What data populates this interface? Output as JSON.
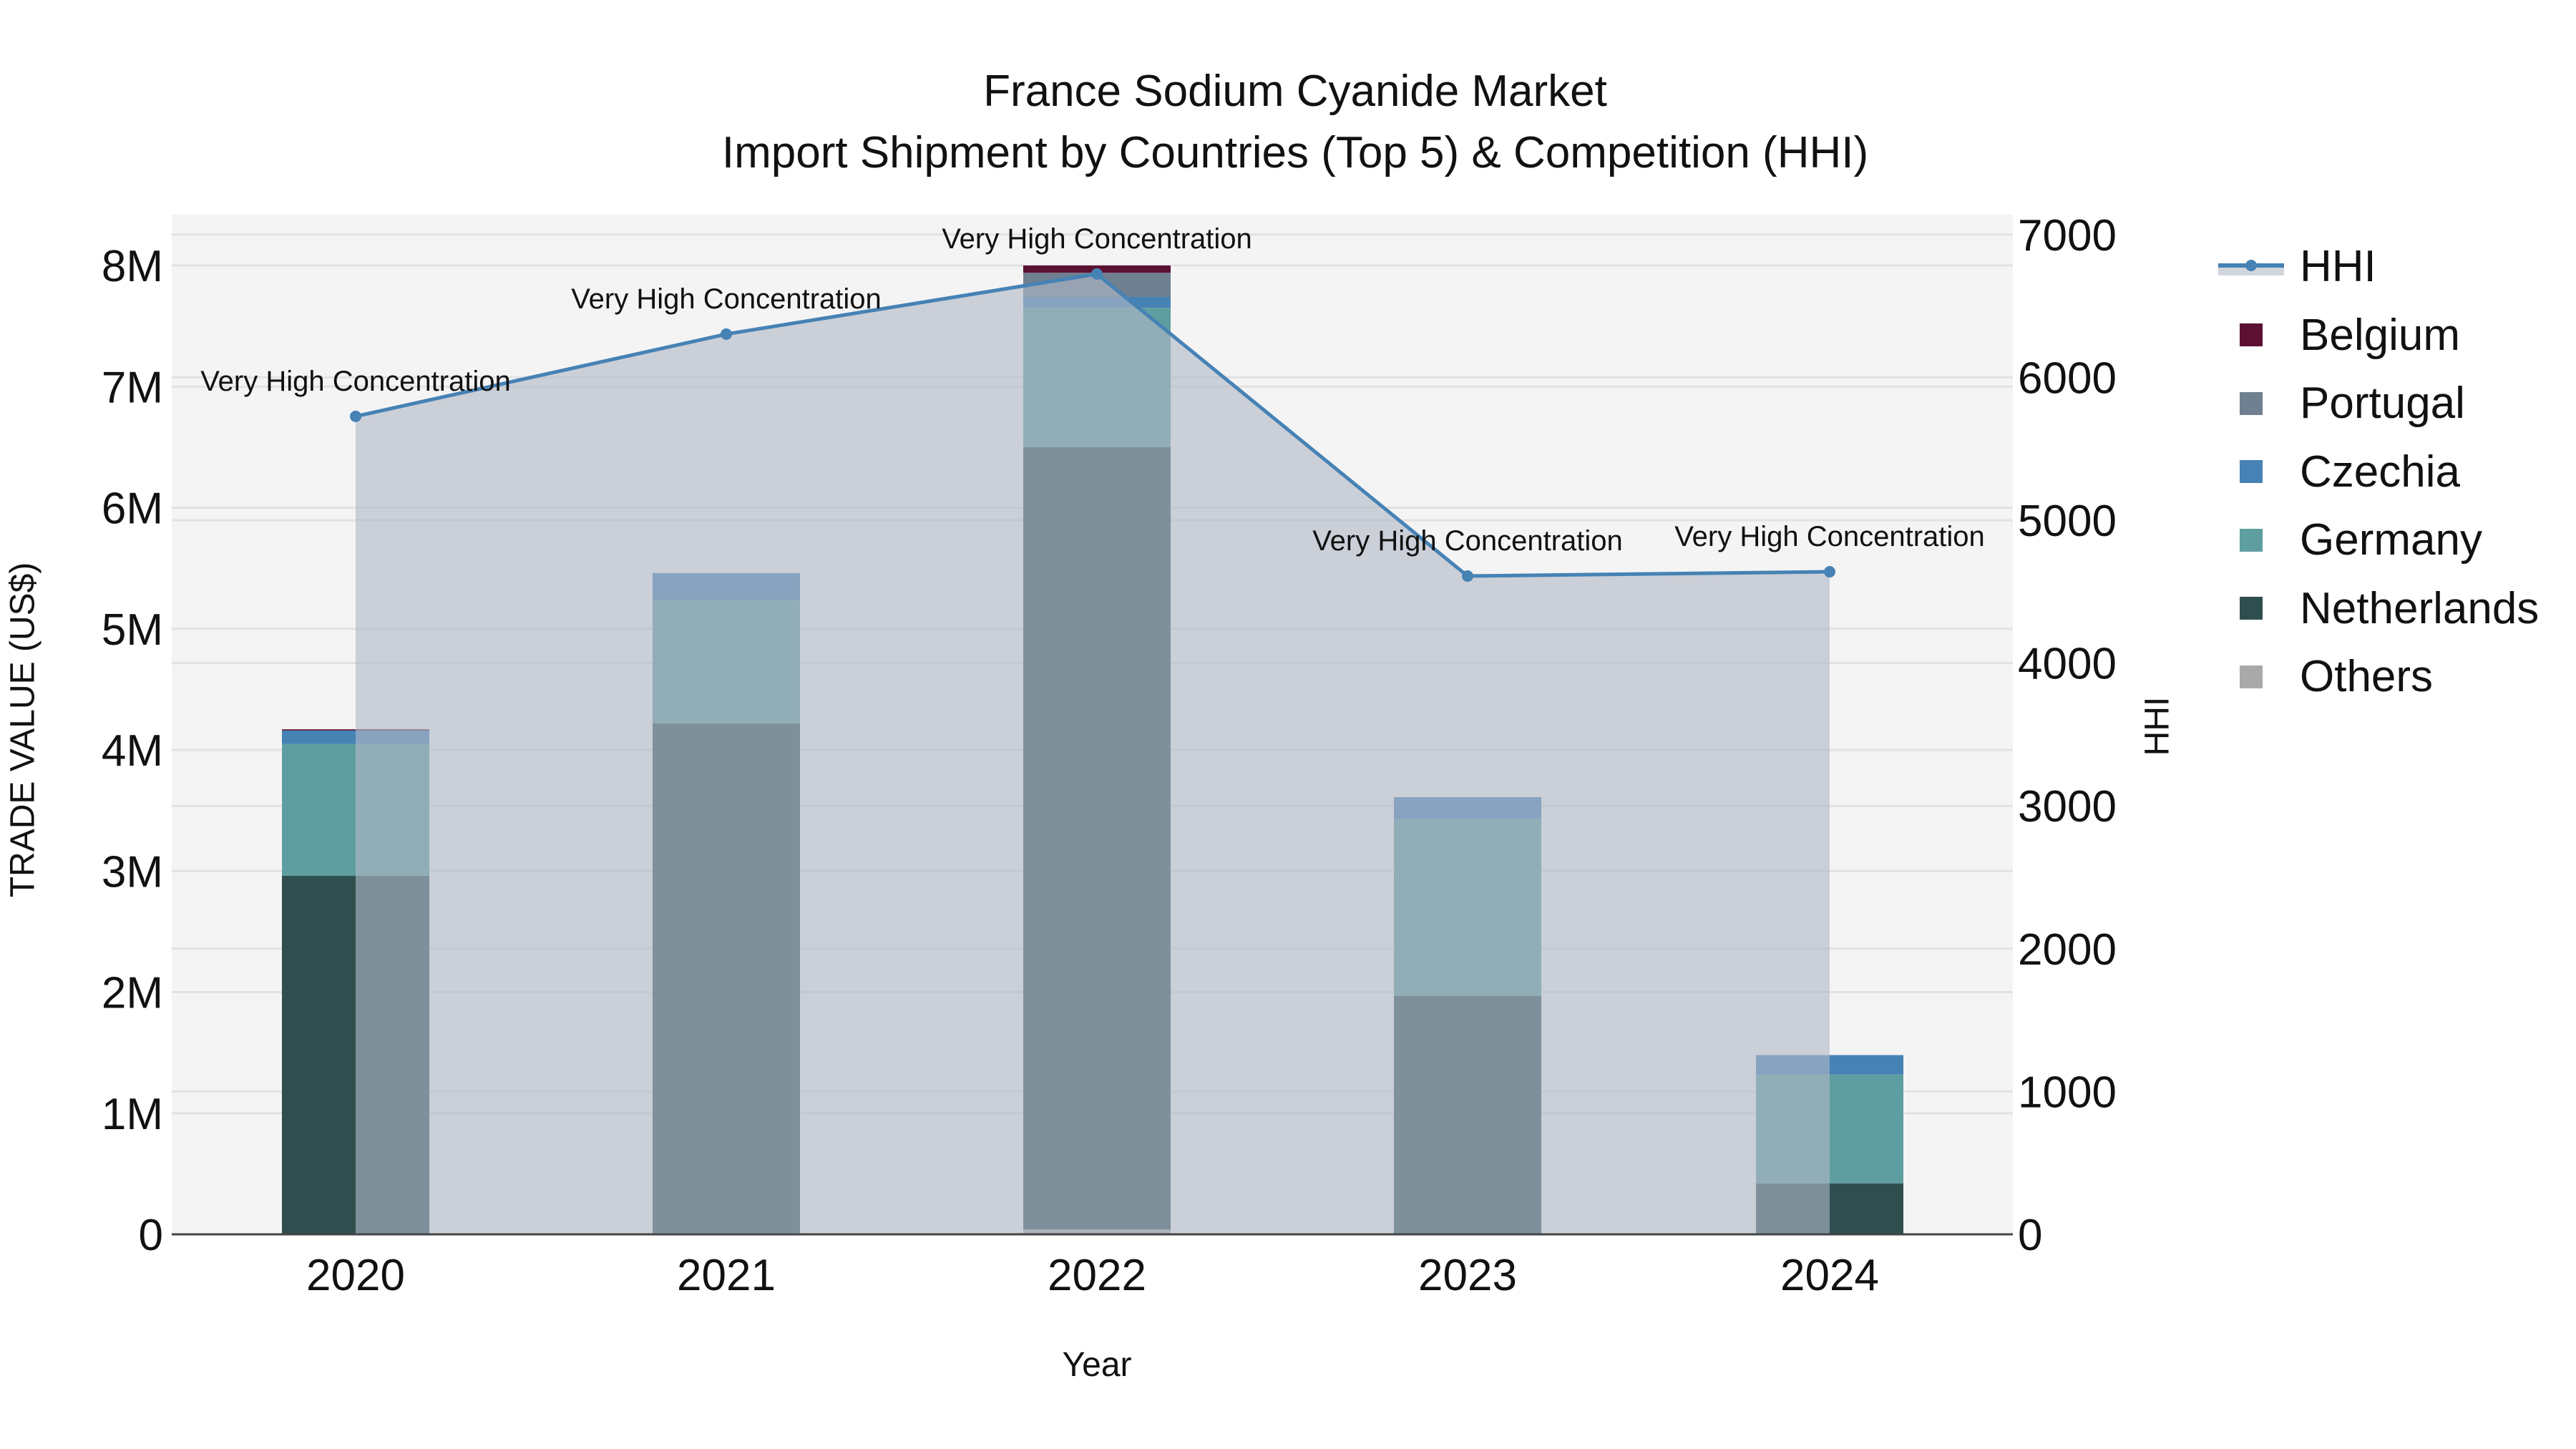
{
  "title": {
    "line1": "France Sodium Cyanide Market",
    "line2": "Import Shipment by Countries (Top 5) & Competition (HHI)"
  },
  "axes": {
    "x_title": "Year",
    "y_left_title": "TRADE VALUE (US$)",
    "y_right_title": "HHI",
    "y_left_ticks": [
      "0",
      "1M",
      "2M",
      "3M",
      "4M",
      "5M",
      "6M",
      "7M",
      "8M"
    ],
    "y_right_ticks": [
      "0",
      "1000",
      "2000",
      "3000",
      "4000",
      "5000",
      "6000",
      "7000"
    ]
  },
  "legend": {
    "items": [
      {
        "label": "HHI",
        "type": "line",
        "color": "#4682b4"
      },
      {
        "label": "Belgium",
        "type": "bar",
        "color": "#5c1133"
      },
      {
        "label": "Portugal",
        "type": "bar",
        "color": "#708090"
      },
      {
        "label": "Czechia",
        "type": "bar",
        "color": "#4682b4"
      },
      {
        "label": "Germany",
        "type": "bar",
        "color": "#5f9ea0"
      },
      {
        "label": "Netherlands",
        "type": "bar",
        "color": "#2f4f4f"
      },
      {
        "label": "Others",
        "type": "bar",
        "color": "#a9a9a9"
      }
    ]
  },
  "chart_data": {
    "type": "bar",
    "subtype": "stacked bar with line overlay (dual axis)",
    "title": "France Sodium Cyanide Market — Import Shipment by Countries (Top 5) & Competition (HHI)",
    "xlabel": "Year",
    "ylabel": "TRADE VALUE (US$)",
    "y2label": "HHI",
    "categories": [
      "2020",
      "2021",
      "2022",
      "2023",
      "2024"
    ],
    "ylim": [
      0,
      8400000
    ],
    "y2lim": [
      0,
      7150
    ],
    "grid": true,
    "legend_position": "right",
    "series": [
      {
        "name": "Others",
        "color": "#a9a9a9",
        "values": [
          0,
          10000,
          40000,
          0,
          0
        ]
      },
      {
        "name": "Netherlands",
        "color": "#2f4f4f",
        "values": [
          2960000,
          4210000,
          6460000,
          1970000,
          420000
        ]
      },
      {
        "name": "Germany",
        "color": "#5f9ea0",
        "values": [
          1090000,
          1020000,
          1150000,
          1460000,
          900000
        ]
      },
      {
        "name": "Czechia",
        "color": "#4682b4",
        "values": [
          110000,
          220000,
          90000,
          180000,
          160000
        ]
      },
      {
        "name": "Portugal",
        "color": "#708090",
        "values": [
          0,
          0,
          200000,
          0,
          0
        ]
      },
      {
        "name": "Belgium",
        "color": "#5c1133",
        "values": [
          10000,
          0,
          60000,
          0,
          0
        ]
      }
    ],
    "line_series": {
      "name": "HHI",
      "axis": "right",
      "color": "#4682b4",
      "fill": "tozeroy",
      "values": [
        5727,
        6303,
        6724,
        4609,
        4639
      ],
      "annotations": [
        "Very High Concentration",
        "Very High Concentration",
        "Very High Concentration",
        "Very High Concentration",
        "Very High Concentration"
      ]
    }
  }
}
